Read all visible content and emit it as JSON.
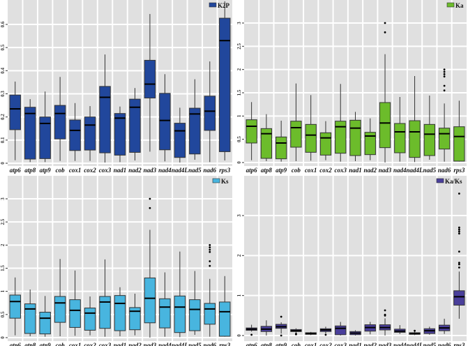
{
  "chart_data": [
    {
      "type": "box",
      "legend": "K2P",
      "legend_position": "top-right",
      "color": "#21479c",
      "grid": true,
      "ylim": [
        0,
        0.7
      ],
      "yticks": [
        "0",
        "0.1",
        "0.2",
        "0.3",
        "0.4",
        "0.5",
        "0.6"
      ],
      "categories": [
        "atp6",
        "atp8",
        "atp9",
        "cob",
        "cox1",
        "cox2",
        "cox3",
        "nad1",
        "nad2",
        "nad3",
        "nad4",
        "nad4L",
        "nad5",
        "nad6",
        "rps3"
      ],
      "boxes": [
        {
          "min": 0.013,
          "q1": 0.145,
          "median": 0.235,
          "q3": 0.295,
          "max": 0.353,
          "outliers": []
        },
        {
          "min": 0.005,
          "q1": 0.018,
          "median": 0.215,
          "q3": 0.242,
          "max": 0.277,
          "outliers": []
        },
        {
          "min": 0.005,
          "q1": 0.02,
          "median": 0.172,
          "q3": 0.2,
          "max": 0.31,
          "outliers": []
        },
        {
          "min": 0.01,
          "q1": 0.105,
          "median": 0.215,
          "q3": 0.25,
          "max": 0.373,
          "outliers": []
        },
        {
          "min": 0.01,
          "q1": 0.055,
          "median": 0.142,
          "q3": 0.187,
          "max": 0.26,
          "outliers": []
        },
        {
          "min": 0.01,
          "q1": 0.057,
          "median": 0.165,
          "q3": 0.2,
          "max": 0.247,
          "outliers": []
        },
        {
          "min": 0.003,
          "q1": 0.045,
          "median": 0.285,
          "q3": 0.332,
          "max": 0.47,
          "outliers": []
        },
        {
          "min": 0.005,
          "q1": 0.035,
          "median": 0.195,
          "q3": 0.215,
          "max": 0.245,
          "outliers": []
        },
        {
          "min": 0.012,
          "q1": 0.047,
          "median": 0.242,
          "q3": 0.277,
          "max": 0.325,
          "outliers": []
        },
        {
          "min": 0.05,
          "q1": 0.282,
          "median": 0.342,
          "q3": 0.445,
          "max": 0.645,
          "outliers": []
        },
        {
          "min": 0.008,
          "q1": 0.058,
          "median": 0.185,
          "q3": 0.302,
          "max": 0.385,
          "outliers": []
        },
        {
          "min": 0.003,
          "q1": 0.025,
          "median": 0.14,
          "q3": 0.173,
          "max": 0.24,
          "outliers": []
        },
        {
          "min": 0.015,
          "q1": 0.04,
          "median": 0.213,
          "q3": 0.238,
          "max": 0.363,
          "outliers": []
        },
        {
          "min": 0.005,
          "q1": 0.142,
          "median": 0.225,
          "q3": 0.29,
          "max": 0.44,
          "outliers": []
        },
        {
          "min": 0.012,
          "q1": 0.05,
          "median": 0.53,
          "q3": 0.627,
          "max": 0.7,
          "outliers": []
        }
      ]
    },
    {
      "type": "box",
      "legend": "Ka",
      "legend_position": "top-right",
      "color": "#6cbc2b",
      "grid": true,
      "ylim": [
        0,
        3.5
      ],
      "yticks": [
        "0",
        "0.5",
        "1",
        "1.5",
        "2",
        "2.5",
        "3"
      ],
      "categories": [
        "atp6",
        "atp8",
        "atp9",
        "cob",
        "cox1",
        "cox2",
        "cox3",
        "nad1",
        "nad2",
        "nad3",
        "nad4",
        "nad4L",
        "nad5",
        "nad6",
        "rps3"
      ],
      "boxes": [
        {
          "min": 0.05,
          "q1": 0.42,
          "median": 0.78,
          "q3": 0.92,
          "max": 1.3,
          "outliers": []
        },
        {
          "min": 0.03,
          "q1": 0.09,
          "median": 0.62,
          "q3": 0.73,
          "max": 1.04,
          "outliers": []
        },
        {
          "min": 0.02,
          "q1": 0.08,
          "median": 0.42,
          "q3": 0.55,
          "max": 0.9,
          "outliers": []
        },
        {
          "min": 0.03,
          "q1": 0.33,
          "median": 0.75,
          "q3": 0.89,
          "max": 1.7,
          "outliers": []
        },
        {
          "min": 0.04,
          "q1": 0.22,
          "median": 0.59,
          "q3": 0.82,
          "max": 1.45,
          "outliers": []
        },
        {
          "min": 0.05,
          "q1": 0.16,
          "median": 0.53,
          "q3": 0.64,
          "max": 0.89,
          "outliers": []
        },
        {
          "min": 0.02,
          "q1": 0.2,
          "median": 0.77,
          "q3": 0.89,
          "max": 1.69,
          "outliers": []
        },
        {
          "min": 0.03,
          "q1": 0.15,
          "median": 0.74,
          "q3": 0.91,
          "max": 1.09,
          "outliers": []
        },
        {
          "min": 0.05,
          "q1": 0.17,
          "median": 0.57,
          "q3": 0.65,
          "max": 0.95,
          "outliers": []
        },
        {
          "min": 0.0,
          "q1": 0.32,
          "median": 0.85,
          "q3": 1.29,
          "max": 2.33,
          "outliers": [
            3.0,
            2.8
          ]
        },
        {
          "min": 0.02,
          "q1": 0.21,
          "median": 0.66,
          "q3": 0.84,
          "max": 1.41,
          "outliers": []
        },
        {
          "min": 0.01,
          "q1": 0.11,
          "median": 0.66,
          "q3": 0.9,
          "max": 1.86,
          "outliers": []
        },
        {
          "min": 0.06,
          "q1": 0.15,
          "median": 0.61,
          "q3": 0.82,
          "max": 1.44,
          "outliers": []
        },
        {
          "min": 0.02,
          "q1": 0.29,
          "median": 0.62,
          "q3": 0.74,
          "max": 1.27,
          "outliers": [
            1.55,
            1.65,
            1.85,
            1.9,
            1.95,
            2.0
          ]
        },
        {
          "min": 0.02,
          "q1": 0.03,
          "median": 0.56,
          "q3": 0.77,
          "max": 1.33,
          "outliers": []
        }
      ]
    },
    {
      "type": "box",
      "legend": "Ks",
      "legend_position": "top-right",
      "color": "#48b5df",
      "grid": true,
      "ylim": [
        0,
        3.5
      ],
      "yticks": [
        "0",
        "0.5",
        "1",
        "1.5",
        "2",
        "2.5",
        "3"
      ],
      "categories": [
        "atp6",
        "atp8",
        "atp9",
        "cob",
        "cox1",
        "cox2",
        "cox3",
        "nad1",
        "nad2",
        "nad3",
        "nad4",
        "nad4L",
        "nad5",
        "nad6",
        "rps3"
      ],
      "boxes": [
        {
          "min": 0.05,
          "q1": 0.42,
          "median": 0.78,
          "q3": 0.92,
          "max": 1.3,
          "outliers": []
        },
        {
          "min": 0.03,
          "q1": 0.09,
          "median": 0.62,
          "q3": 0.73,
          "max": 1.04,
          "outliers": []
        },
        {
          "min": 0.02,
          "q1": 0.08,
          "median": 0.42,
          "q3": 0.55,
          "max": 0.9,
          "outliers": []
        },
        {
          "min": 0.03,
          "q1": 0.33,
          "median": 0.75,
          "q3": 0.89,
          "max": 1.7,
          "outliers": []
        },
        {
          "min": 0.04,
          "q1": 0.22,
          "median": 0.59,
          "q3": 0.82,
          "max": 1.45,
          "outliers": []
        },
        {
          "min": 0.05,
          "q1": 0.16,
          "median": 0.53,
          "q3": 0.64,
          "max": 0.89,
          "outliers": []
        },
        {
          "min": 0.02,
          "q1": 0.2,
          "median": 0.77,
          "q3": 0.89,
          "max": 1.69,
          "outliers": []
        },
        {
          "min": 0.03,
          "q1": 0.15,
          "median": 0.74,
          "q3": 0.91,
          "max": 1.09,
          "outliers": []
        },
        {
          "min": 0.05,
          "q1": 0.17,
          "median": 0.57,
          "q3": 0.65,
          "max": 0.95,
          "outliers": []
        },
        {
          "min": 0.0,
          "q1": 0.32,
          "median": 0.85,
          "q3": 1.29,
          "max": 2.33,
          "outliers": [
            3.0,
            2.8
          ]
        },
        {
          "min": 0.02,
          "q1": 0.21,
          "median": 0.66,
          "q3": 0.84,
          "max": 1.41,
          "outliers": []
        },
        {
          "min": 0.01,
          "q1": 0.11,
          "median": 0.66,
          "q3": 0.9,
          "max": 1.86,
          "outliers": []
        },
        {
          "min": 0.06,
          "q1": 0.15,
          "median": 0.61,
          "q3": 0.82,
          "max": 1.44,
          "outliers": []
        },
        {
          "min": 0.02,
          "q1": 0.29,
          "median": 0.62,
          "q3": 0.74,
          "max": 1.27,
          "outliers": [
            1.55,
            1.65,
            1.85,
            1.9,
            1.95,
            2.0
          ]
        },
        {
          "min": 0.02,
          "q1": 0.03,
          "median": 0.56,
          "q3": 0.77,
          "max": 1.33,
          "outliers": []
        }
      ]
    },
    {
      "type": "box",
      "legend": "Ka/Ks",
      "legend_position": "top-right",
      "color": "#4a3f9b",
      "grid": true,
      "ylim": [
        0,
        4
      ],
      "yticks": [
        "0",
        "1",
        "2",
        "3"
      ],
      "categories": [
        "atp6",
        "atp8",
        "atp9",
        "cob",
        "cox1",
        "cox2",
        "cox3",
        "nad1",
        "nad2",
        "nad3",
        "nad4",
        "nad4L",
        "nad5",
        "nad6",
        "rps3"
      ],
      "boxes": [
        {
          "min": 0.1,
          "q1": 0.13,
          "median": 0.16,
          "q3": 0.19,
          "max": 0.27,
          "outliers": [
            0.02
          ]
        },
        {
          "min": 0.0,
          "q1": 0.1,
          "median": 0.16,
          "q3": 0.23,
          "max": 0.38,
          "outliers": []
        },
        {
          "min": 0.05,
          "q1": 0.18,
          "median": 0.22,
          "q3": 0.28,
          "max": 0.33,
          "outliers": [
            0.47,
            0.0
          ]
        },
        {
          "min": 0.05,
          "q1": 0.1,
          "median": 0.12,
          "q3": 0.15,
          "max": 0.18,
          "outliers": [
            0.04,
            0.03
          ]
        },
        {
          "min": 0.01,
          "q1": 0.03,
          "median": 0.05,
          "q3": 0.07,
          "max": 0.09,
          "outliers": []
        },
        {
          "min": 0.05,
          "q1": 0.1,
          "median": 0.14,
          "q3": 0.17,
          "max": 0.22,
          "outliers": [
            0.02
          ]
        },
        {
          "min": 0.0,
          "q1": 0.02,
          "median": 0.18,
          "q3": 0.24,
          "max": 0.34,
          "outliers": []
        },
        {
          "min": 0.0,
          "q1": 0.02,
          "median": 0.06,
          "q3": 0.1,
          "max": 0.13,
          "outliers": []
        },
        {
          "min": 0.03,
          "q1": 0.11,
          "median": 0.2,
          "q3": 0.27,
          "max": 0.34,
          "outliers": []
        },
        {
          "min": 0.0,
          "q1": 0.14,
          "median": 0.2,
          "q3": 0.27,
          "max": 0.43,
          "outliers": [
            0.5,
            0.52,
            0.63
          ]
        },
        {
          "min": 0.04,
          "q1": 0.08,
          "median": 0.11,
          "q3": 0.16,
          "max": 0.26,
          "outliers": []
        },
        {
          "min": 0.01,
          "q1": 0.03,
          "median": 0.05,
          "q3": 0.07,
          "max": 0.1,
          "outliers": [
            0.12
          ]
        },
        {
          "min": 0.02,
          "q1": 0.05,
          "median": 0.12,
          "q3": 0.17,
          "max": 0.22,
          "outliers": []
        },
        {
          "min": 0.04,
          "q1": 0.12,
          "median": 0.19,
          "q3": 0.26,
          "max": 0.42,
          "outliers": []
        },
        {
          "min": 0.42,
          "q1": 0.76,
          "median": 0.97,
          "q3": 1.12,
          "max": 1.6,
          "outliers": [
            1.7,
            1.78,
            1.82,
            2.1,
            2.55,
            2.6,
            2.65,
            2.7,
            3.55
          ]
        }
      ]
    }
  ]
}
